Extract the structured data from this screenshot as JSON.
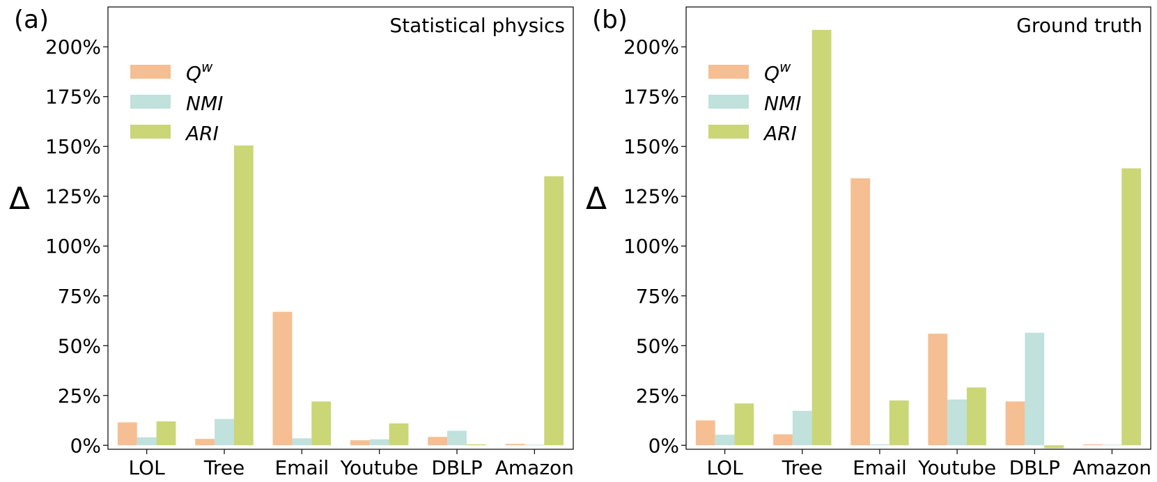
{
  "colors": {
    "Qw": "#f5bf93",
    "NMI": "#c0e1dc",
    "ARI": "#cbd677"
  },
  "legend": [
    {
      "key": "Qw",
      "base": "Q",
      "sup": "w"
    },
    {
      "key": "NMI",
      "base": "NMI",
      "sup": ""
    },
    {
      "key": "ARI",
      "base": "ARI",
      "sup": ""
    }
  ],
  "chart_data": [
    {
      "type": "bar",
      "panel_label": "(a)",
      "title": "Statistical physics",
      "ylabel": "Δ",
      "xlabel": "",
      "ylim": [
        -2,
        220
      ],
      "yticks": [
        0,
        25,
        50,
        75,
        100,
        125,
        150,
        175,
        200
      ],
      "ytick_labels": [
        "0%",
        "25%",
        "50%",
        "75%",
        "100%",
        "125%",
        "150%",
        "175%",
        "200%"
      ],
      "categories": [
        "LOL",
        "Tree",
        "Email",
        "Youtube",
        "DBLP",
        "Amazon"
      ],
      "series": [
        {
          "key": "Qw",
          "values": [
            11.5,
            3.2,
            67.0,
            2.5,
            4.2,
            0.7
          ]
        },
        {
          "key": "NMI",
          "values": [
            4.0,
            13.2,
            3.5,
            3.0,
            7.3,
            0.3
          ]
        },
        {
          "key": "ARI",
          "values": [
            12.0,
            150.5,
            22.0,
            11.0,
            0.5,
            135.0
          ]
        }
      ],
      "legend_position": "upper left",
      "grid": false
    },
    {
      "type": "bar",
      "panel_label": "(b)",
      "title": "Ground truth",
      "ylabel": "Δ",
      "xlabel": "",
      "ylim": [
        -2,
        220
      ],
      "yticks": [
        0,
        25,
        50,
        75,
        100,
        125,
        150,
        175,
        200
      ],
      "ytick_labels": [
        "0%",
        "25%",
        "50%",
        "75%",
        "100%",
        "125%",
        "150%",
        "175%",
        "200%"
      ],
      "categories": [
        "LOL",
        "Tree",
        "Email",
        "Youtube",
        "DBLP",
        "Amazon"
      ],
      "series": [
        {
          "key": "Qw",
          "values": [
            12.5,
            5.5,
            134.0,
            56.0,
            22.0,
            0.5
          ]
        },
        {
          "key": "NMI",
          "values": [
            5.3,
            17.3,
            0.5,
            23.0,
            56.5,
            0.3
          ]
        },
        {
          "key": "ARI",
          "values": [
            21.0,
            208.5,
            22.5,
            29.0,
            -1.5,
            139.0
          ]
        }
      ],
      "legend_position": "upper left",
      "grid": false
    }
  ]
}
